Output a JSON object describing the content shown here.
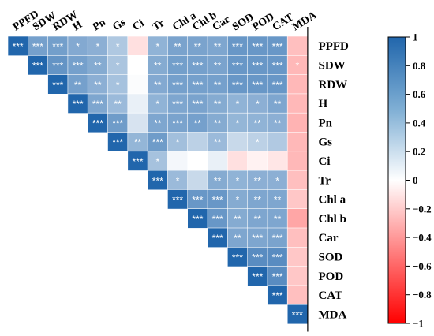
{
  "chart_data": {
    "type": "heatmap",
    "subtype": "upper-triangular correlation matrix",
    "variables": [
      "PPFD",
      "SDW",
      "RDW",
      "H",
      "Pn",
      "Gs",
      "Ci",
      "Tr",
      "Chl a",
      "Chl b",
      "Car",
      "SOD",
      "POD",
      "CAT",
      "MDA"
    ],
    "values": [
      [
        1,
        0.62,
        0.63,
        0.56,
        0.52,
        0.36,
        -0.12,
        0.5,
        0.6,
        0.6,
        0.58,
        0.68,
        0.68,
        0.68,
        -0.25
      ],
      [
        0.62,
        1,
        0.7,
        0.62,
        0.55,
        0.38,
        0.0,
        0.55,
        0.63,
        0.62,
        0.6,
        0.68,
        0.68,
        0.68,
        -0.28
      ],
      [
        0.63,
        0.7,
        1,
        0.62,
        0.52,
        0.4,
        0.02,
        0.56,
        0.62,
        0.62,
        0.62,
        0.68,
        0.68,
        0.68,
        -0.28
      ],
      [
        0.56,
        0.62,
        0.62,
        1,
        0.58,
        0.45,
        0.1,
        0.5,
        0.58,
        0.6,
        0.55,
        0.5,
        0.52,
        0.58,
        -0.28
      ],
      [
        0.52,
        0.55,
        0.52,
        0.58,
        1,
        0.65,
        0.18,
        0.58,
        0.6,
        0.62,
        0.55,
        0.48,
        0.5,
        0.52,
        -0.3
      ],
      [
        0.36,
        0.38,
        0.4,
        0.45,
        0.65,
        1,
        0.48,
        0.65,
        0.42,
        0.3,
        0.45,
        0.25,
        0.3,
        0.35,
        -0.28
      ],
      [
        -0.12,
        0.0,
        0.02,
        0.1,
        0.18,
        0.48,
        1,
        0.4,
        0.05,
        0.0,
        0.1,
        -0.12,
        -0.05,
        -0.1,
        -0.28
      ],
      [
        0.5,
        0.55,
        0.56,
        0.5,
        0.58,
        0.65,
        0.4,
        1,
        0.45,
        0.25,
        0.55,
        0.5,
        0.52,
        0.52,
        -0.25
      ],
      [
        0.6,
        0.63,
        0.62,
        0.58,
        0.6,
        0.42,
        0.05,
        0.45,
        1,
        0.68,
        0.68,
        0.55,
        0.58,
        0.58,
        -0.22
      ],
      [
        0.6,
        0.62,
        0.62,
        0.6,
        0.62,
        0.3,
        0.0,
        0.25,
        0.68,
        1,
        0.68,
        0.55,
        0.58,
        0.58,
        -0.35
      ],
      [
        0.58,
        0.6,
        0.62,
        0.55,
        0.55,
        0.45,
        0.1,
        0.55,
        0.68,
        0.68,
        1,
        0.58,
        0.58,
        0.6,
        -0.25
      ],
      [
        0.68,
        0.68,
        0.68,
        0.5,
        0.48,
        0.25,
        -0.12,
        0.5,
        0.55,
        0.55,
        0.58,
        1,
        0.75,
        0.75,
        -0.22
      ],
      [
        0.68,
        0.68,
        0.68,
        0.52,
        0.5,
        0.3,
        -0.05,
        0.52,
        0.58,
        0.58,
        0.58,
        0.75,
        1,
        0.75,
        -0.22
      ],
      [
        0.68,
        0.68,
        0.68,
        0.58,
        0.52,
        0.35,
        -0.1,
        0.52,
        0.58,
        0.58,
        0.6,
        0.75,
        0.75,
        1,
        -0.25
      ],
      [
        -0.25,
        -0.28,
        -0.28,
        -0.28,
        -0.3,
        -0.28,
        -0.28,
        -0.25,
        -0.22,
        -0.35,
        -0.25,
        -0.22,
        -0.22,
        -0.25,
        1
      ]
    ],
    "significance": [
      [
        "***",
        "***",
        "***",
        "*",
        "*",
        "*",
        "",
        "*",
        "**",
        "**",
        "**",
        "***",
        "***",
        "***",
        ""
      ],
      [
        "",
        "***",
        "***",
        "***",
        "**",
        "*",
        "",
        "**",
        "***",
        "***",
        "**",
        "***",
        "***",
        "***",
        "*"
      ],
      [
        "",
        "",
        "***",
        "**",
        "**",
        "*",
        "",
        "**",
        "***",
        "***",
        "**",
        "***",
        "***",
        "***",
        ""
      ],
      [
        "",
        "",
        "",
        "***",
        "***",
        "**",
        "",
        "*",
        "***",
        "***",
        "**",
        "*",
        "*",
        "**",
        ""
      ],
      [
        "",
        "",
        "",
        "",
        "***",
        "***",
        "",
        "**",
        "***",
        "**",
        "**",
        "*",
        "**",
        "**",
        ""
      ],
      [
        "",
        "",
        "",
        "",
        "",
        "***",
        "**",
        "***",
        "*",
        "",
        "**",
        "",
        "*",
        "",
        ""
      ],
      [
        "",
        "",
        "",
        "",
        "",
        "",
        "***",
        "*",
        "",
        "",
        "",
        "",
        "",
        "",
        ""
      ],
      [
        "",
        "",
        "",
        "",
        "",
        "",
        "",
        "***",
        "*",
        "",
        "**",
        "*",
        "**",
        "*",
        ""
      ],
      [
        "",
        "",
        "",
        "",
        "",
        "",
        "",
        "",
        "***",
        "***",
        "***",
        "*",
        "**",
        "**",
        ""
      ],
      [
        "",
        "",
        "",
        "",
        "",
        "",
        "",
        "",
        "",
        "***",
        "***",
        "**",
        "**",
        "**",
        ""
      ],
      [
        "",
        "",
        "",
        "",
        "",
        "",
        "",
        "",
        "",
        "",
        "***",
        "**",
        "***",
        "***",
        ""
      ],
      [
        "",
        "",
        "",
        "",
        "",
        "",
        "",
        "",
        "",
        "",
        "",
        "***",
        "***",
        "***",
        ""
      ],
      [
        "",
        "",
        "",
        "",
        "",
        "",
        "",
        "",
        "",
        "",
        "",
        "",
        "***",
        "***",
        ""
      ],
      [
        "",
        "",
        "",
        "",
        "",
        "",
        "",
        "",
        "",
        "",
        "",
        "",
        "",
        "***",
        ""
      ],
      [
        "",
        "",
        "",
        "",
        "",
        "",
        "",
        "",
        "",
        "",
        "",
        "",
        "",
        "",
        "***"
      ]
    ],
    "colorbar": {
      "ticks": [
        1,
        0.8,
        0.6,
        0.4,
        0.2,
        0,
        -0.2,
        -0.4,
        -0.6,
        -0.8,
        -1
      ],
      "tick_labels": [
        "1",
        "0.8",
        "0.6",
        "0.4",
        "0.2",
        "0",
        "−0.2",
        "−0.4",
        "−0.6",
        "−0.8",
        "−1"
      ],
      "range": [
        -1,
        1
      ],
      "colors": {
        "positive": "#2166ac",
        "zero": "#ffffff",
        "negative": "#ff0000"
      }
    }
  }
}
